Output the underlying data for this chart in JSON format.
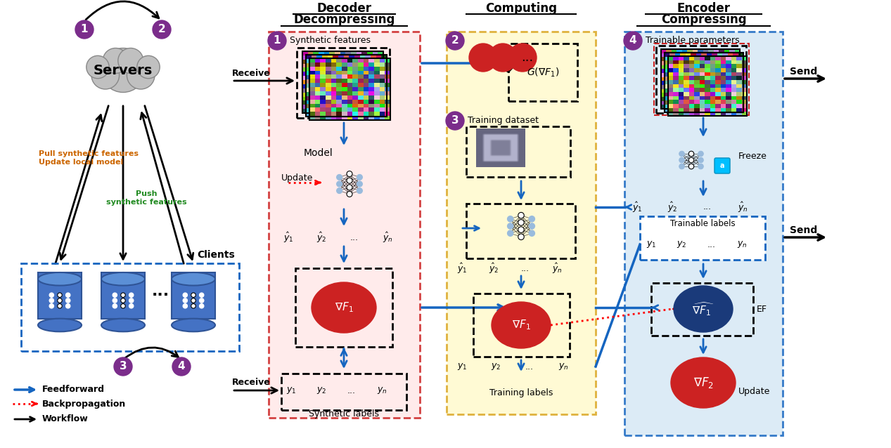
{
  "bg_color": "#ffffff",
  "purple_color": "#7B2D8B",
  "red_circle_color": "#CC2222",
  "blue_circle_color": "#1A3A7A",
  "blue_arrow_color": "#1565C0",
  "yellow_bg": "#FFFACD",
  "pink_bg": "#FFE8E8",
  "light_blue_bg": "#D6E8F5",
  "servers_text": "Servers",
  "clients_text": "Clients",
  "pull_text": "Pull synthetic features\nUpdate local model",
  "push_text": "Push\nsynthetic features"
}
